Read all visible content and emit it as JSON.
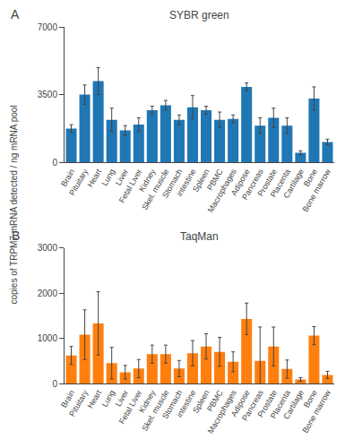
{
  "chart_data": [
    {
      "type": "bar",
      "title": "SYBR green",
      "annotations": [
        "A"
      ],
      "ylabel": "copies of TRPM7 mRNA detected / ng mRNA pool",
      "categories": [
        "Brain",
        "Pituitary",
        "Heart",
        "Lung",
        "Liver",
        "Fetal Liver",
        "Kidney",
        "Skel. muscle",
        "Stomach",
        "intestine",
        "Spleen",
        "PBMC",
        "Macrophages",
        "Adipose",
        "Pancreas",
        "Prostate",
        "Placenta",
        "Cartilage",
        "Bone",
        "Bone marrow"
      ],
      "values": [
        1750,
        3500,
        4200,
        2200,
        1650,
        1950,
        2700,
        2950,
        2200,
        2850,
        2700,
        2200,
        2250,
        3900,
        1900,
        2300,
        1900,
        500,
        3300,
        1050
      ],
      "errors": [
        200,
        500,
        700,
        600,
        250,
        350,
        200,
        250,
        250,
        600,
        200,
        400,
        200,
        200,
        400,
        500,
        400,
        100,
        600,
        150
      ],
      "ylim": [
        0,
        7000
      ],
      "yticks": [
        0,
        3500,
        7000
      ],
      "grid": false
    },
    {
      "type": "bar",
      "title": "TaqMan",
      "annotations": [
        "B"
      ],
      "categories": [
        "Brain",
        "Pituitary",
        "Heart",
        "Lung",
        "Liver",
        "Fetal Liver",
        "Kidney",
        "Skel. muscle",
        "Stomach",
        "intestine",
        "Spleen",
        "PBMC",
        "Macrophages",
        "Adipose",
        "Pancreas",
        "Prostate",
        "Placenta",
        "Cartilage",
        "Bone",
        "Bone marrow"
      ],
      "values": [
        620,
        1080,
        1330,
        450,
        250,
        330,
        650,
        650,
        330,
        670,
        820,
        700,
        480,
        1430,
        500,
        820,
        320,
        90,
        1060,
        190
      ],
      "errors": [
        200,
        550,
        700,
        350,
        150,
        200,
        200,
        200,
        180,
        280,
        280,
        320,
        220,
        350,
        750,
        430,
        200,
        40,
        200,
        80
      ],
      "ylim": [
        0,
        3000
      ],
      "yticks": [
        0,
        1000,
        2000,
        3000
      ],
      "grid": false
    }
  ]
}
